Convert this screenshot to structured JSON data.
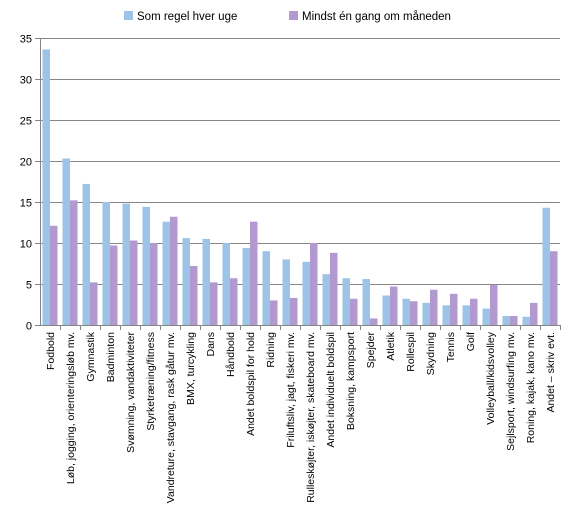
{
  "chart_data": {
    "type": "bar",
    "title": "",
    "xlabel": "",
    "ylabel": "",
    "ylim": [
      0,
      35
    ],
    "yticks": [
      0,
      5,
      10,
      15,
      20,
      25,
      30,
      35
    ],
    "grid": true,
    "legend_position": "top",
    "categories": [
      "Fodbold",
      "Løb, jogging, orienteringsløb mv.",
      "Gymnastik",
      "Badminton",
      "Svømning, vandaktiviteter",
      "Styrketræning/fitness",
      "Vandreture, stavgang, rask gåtur mv.",
      "BMX, turcykling",
      "Dans",
      "Håndbold",
      "Andet boldspil for hold",
      "Ridning",
      "Friluftsliv, jagt, fiskeri mv.",
      "Rulleskøjter, iskøjter, skateboard mv.",
      "Andet individuelt boldspil",
      "Boksning, kampsport",
      "Spejder",
      "Atletik",
      "Rollespil",
      "Skydning",
      "Tennis",
      "Golf",
      "Volleyball/kidsvolley",
      "Sejlsport, windsurfing mv.",
      "Roning, kajak, kano mv.",
      "Andet – skriv evt."
    ],
    "series": [
      {
        "name": "Som regel hver uge",
        "color": "#9dc3e6",
        "values": [
          33.6,
          20.3,
          17.2,
          15.0,
          14.8,
          14.4,
          12.6,
          10.6,
          10.5,
          10.0,
          9.4,
          9.0,
          8.0,
          7.7,
          6.2,
          5.7,
          5.6,
          3.6,
          3.2,
          2.7,
          2.4,
          2.4,
          2.0,
          1.1,
          1.0,
          14.3
        ]
      },
      {
        "name": "Mindst én gang om måneden",
        "color": "#b29ad1",
        "values": [
          12.1,
          15.2,
          5.2,
          9.7,
          10.3,
          10.0,
          13.2,
          7.2,
          5.2,
          5.7,
          12.6,
          3.0,
          3.3,
          10.0,
          8.8,
          3.2,
          0.8,
          4.7,
          2.9,
          4.3,
          3.8,
          3.2,
          4.9,
          1.1,
          2.7,
          9.0
        ]
      }
    ]
  }
}
